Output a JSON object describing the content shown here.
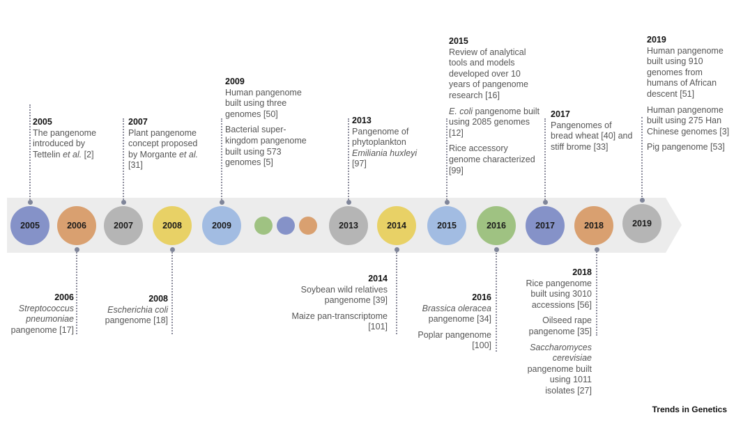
{
  "colors": {
    "band": "#ececec",
    "blue_purple": "#8592c8",
    "orange": "#d9a070",
    "gray": "#b5b5b5",
    "yellow": "#e8d166",
    "light_blue": "#a2bce2",
    "green": "#9fc282"
  },
  "circles": [
    {
      "label": "2005",
      "color": "#8592c8"
    },
    {
      "label": "2006",
      "color": "#d9a070"
    },
    {
      "label": "2007",
      "color": "#b5b5b5"
    },
    {
      "label": "2008",
      "color": "#e8d166"
    },
    {
      "label": "2009",
      "color": "#a2bce2"
    },
    {
      "label": "",
      "color": "#9fc282"
    },
    {
      "label": "",
      "color": "#8592c8"
    },
    {
      "label": "",
      "color": "#d9a070"
    },
    {
      "label": "2013",
      "color": "#b5b5b5"
    },
    {
      "label": "2014",
      "color": "#e8d166"
    },
    {
      "label": "2015",
      "color": "#a2bce2"
    },
    {
      "label": "2016",
      "color": "#9fc282"
    },
    {
      "label": "2017",
      "color": "#8592c8"
    },
    {
      "label": "2018",
      "color": "#d9a070"
    },
    {
      "label": "2019",
      "color": "#b5b5b5"
    }
  ],
  "events": {
    "e2005": {
      "year": "2005",
      "items": [
        "The pangenome introduced by Tettelin et al. [2]"
      ]
    },
    "e2006": {
      "year": "2006",
      "items": [
        "Streptococcus pneumoniae pangenome [17]"
      ]
    },
    "e2007": {
      "year": "2007",
      "items": [
        "Plant pangenome concept proposed by Morgante et al. [31]"
      ]
    },
    "e2008": {
      "year": "2008",
      "items": [
        "Escherichia coli pangenome [18]"
      ]
    },
    "e2009": {
      "year": "2009",
      "items": [
        "Human pangenome built using three genomes [50]",
        "Bacterial super-kingdom pangenome built using 573 genomes [5]"
      ]
    },
    "e2013": {
      "year": "2013",
      "items": [
        "Pangenome of phytoplankton Emiliania huxleyi [97]"
      ]
    },
    "e2014": {
      "year": "2014",
      "items": [
        "Soybean wild relatives pangenome [39]",
        "Maize pan-transcriptome [101]"
      ]
    },
    "e2015": {
      "year": "2015",
      "items": [
        "Review of analytical tools and models developed over 10 years of pangenome research [16]",
        "E. coli pangenome built using 2085 genomes [12]",
        "Rice accessory genome characterized [99]"
      ]
    },
    "e2016": {
      "year": "2016",
      "items": [
        "Brassica oleracea pangenome [34]",
        "Poplar pangenome [100]"
      ]
    },
    "e2017": {
      "year": "2017",
      "items": [
        "Pangenomes of bread wheat [40] and stiff brome [33]"
      ]
    },
    "e2018": {
      "year": "2018",
      "items": [
        "Rice pangenome built using 3010 accessions [56]",
        "Oilseed rape pangenome [35]",
        "Saccharomyces cerevisiae pangenome built using 1011 isolates [27]"
      ]
    },
    "e2019": {
      "year": "2019",
      "items": [
        "Human pangenome built using 910 genomes from humans of African descent [51]",
        "Human pangenome built using 275 Han Chinese genomes [3]",
        "Pig pangenome [53]"
      ]
    }
  },
  "footer": "Trends in Genetics"
}
